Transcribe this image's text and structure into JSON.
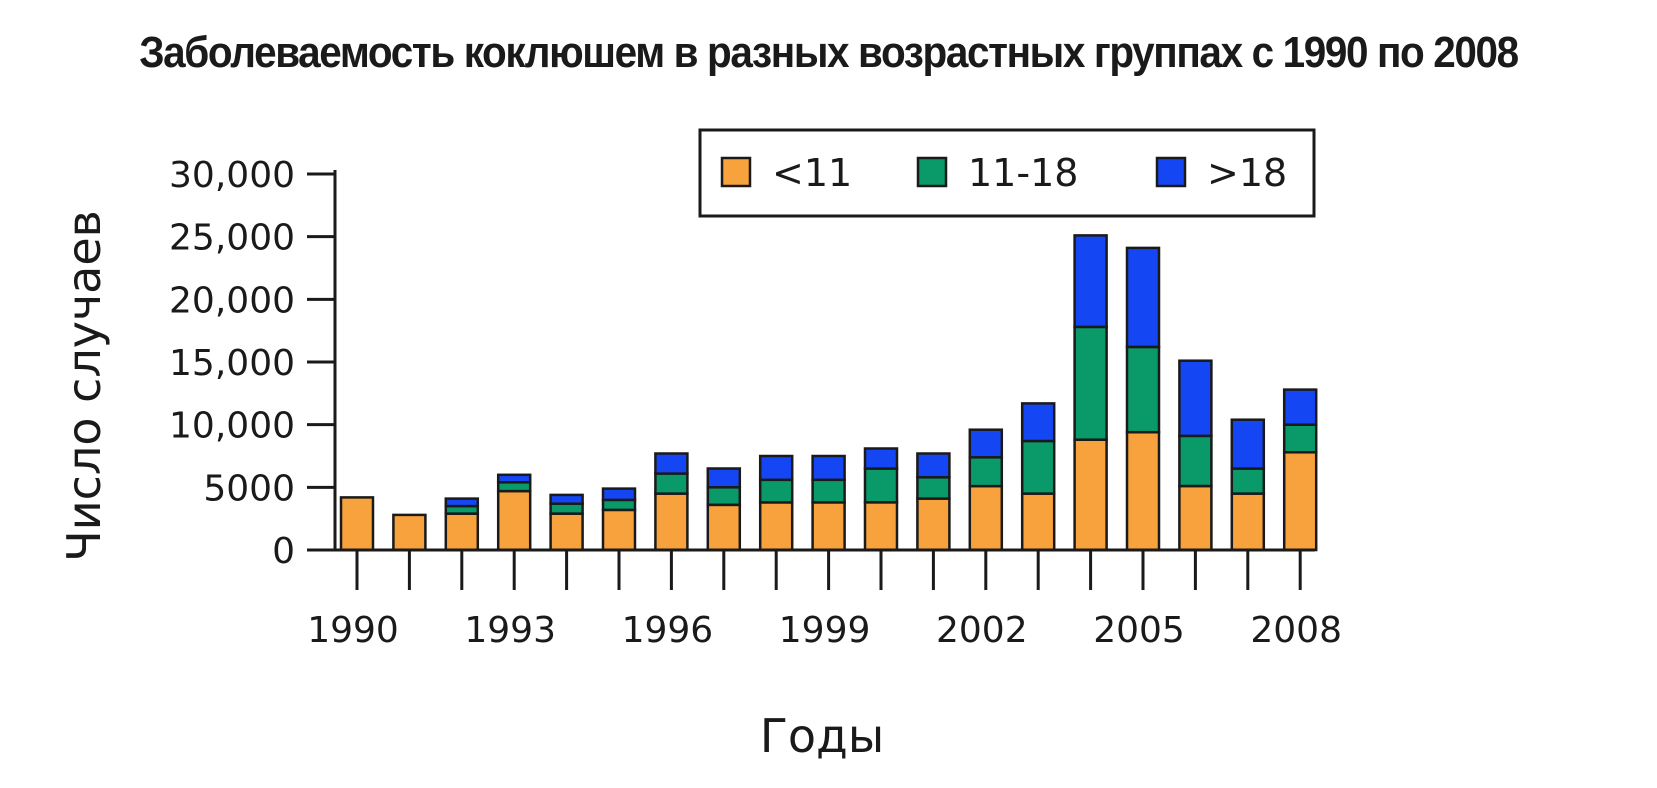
{
  "chart_data": {
    "type": "bar",
    "stacked": true,
    "title": "Заболеваемость коклюшем в разных возрастных группах с 1990 по 2008",
    "xlabel": "Годы",
    "ylabel": "Число случаев",
    "ylim": [
      0,
      30000
    ],
    "yticks": [
      "0",
      "5000",
      "10,000",
      "15,000",
      "20,000",
      "25,000",
      "30,000"
    ],
    "ytick_values": [
      0,
      5000,
      10000,
      15000,
      20000,
      25000,
      30000
    ],
    "categories": [
      1990,
      1991,
      1992,
      1993,
      1994,
      1995,
      1996,
      1997,
      1998,
      1999,
      2000,
      2001,
      2002,
      2003,
      2004,
      2005,
      2006,
      2007,
      2008
    ],
    "xtick_labels": [
      "1990",
      "1993",
      "1996",
      "1999",
      "2002",
      "2005",
      "2008"
    ],
    "xtick_positions": [
      1990,
      1993,
      1996,
      1999,
      2002,
      2005,
      2008
    ],
    "legend_position": "top-right",
    "grid": false,
    "series": [
      {
        "name": "<11",
        "color": "#f7a23c",
        "values": [
          4200,
          2800,
          2900,
          4700,
          2900,
          3200,
          4500,
          3600,
          3800,
          3800,
          3800,
          4100,
          5100,
          4500,
          8800,
          9400,
          5100,
          4500,
          7800
        ]
      },
      {
        "name": "11-18",
        "color": "#0a9a6a",
        "values": [
          0,
          0,
          600,
          700,
          800,
          800,
          1600,
          1400,
          1800,
          1800,
          2700,
          1700,
          2300,
          4200,
          9000,
          6800,
          4000,
          2000,
          2200
        ]
      },
      {
        "name": ">18",
        "color": "#1446f4",
        "values": [
          0,
          0,
          600,
          600,
          700,
          900,
          1600,
          1500,
          1900,
          1900,
          1600,
          1900,
          2200,
          3000,
          7300,
          7900,
          6000,
          3900,
          2800
        ]
      }
    ]
  }
}
